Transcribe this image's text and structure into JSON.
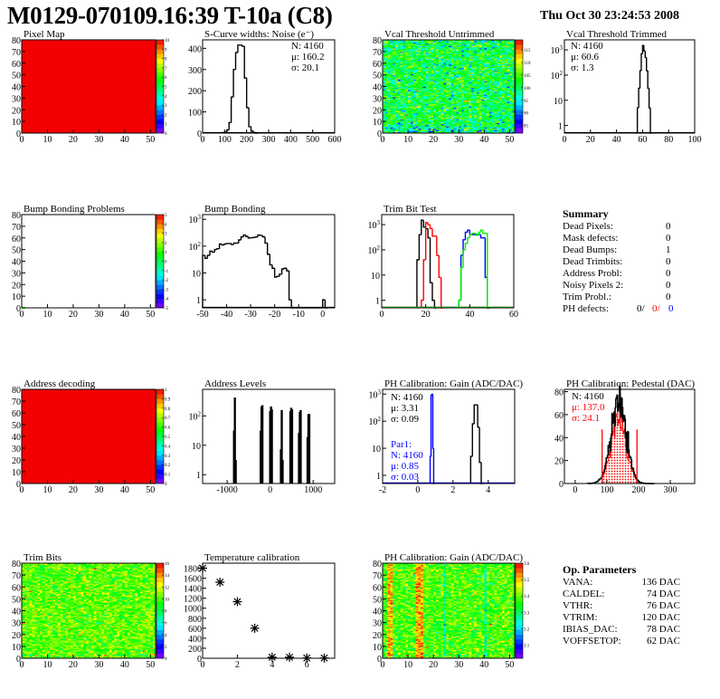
{
  "header": {
    "title": "M0129-070109.16:39 T-10a (C8)",
    "date": "Thu Oct 30 23:24:53 2008"
  },
  "summary": {
    "title": "Summary",
    "rows": [
      {
        "label": "Dead Pixels:",
        "value": "0"
      },
      {
        "label": "Mask defects:",
        "value": "0"
      },
      {
        "label": "Dead Bumps:",
        "value": "1"
      },
      {
        "label": "Dead Trimbits:",
        "value": "0"
      },
      {
        "label": "Address Probl:",
        "value": "0"
      },
      {
        "label": "Noisy Pixels 2:",
        "value": "0"
      },
      {
        "label": "Trim Probl.:",
        "value": "0"
      }
    ],
    "ph_defects": {
      "label": "PH defects:",
      "values": [
        "0/",
        "0/",
        "0"
      ],
      "colors": [
        "#000000",
        "#ff0000",
        "#0000ff"
      ]
    }
  },
  "op_parameters": {
    "title": "Op. Parameters",
    "rows": [
      {
        "label": "VANA:",
        "value": "136 DAC"
      },
      {
        "label": "CALDEL:",
        "value": "74 DAC"
      },
      {
        "label": "VTHR:",
        "value": "76 DAC"
      },
      {
        "label": "VTRIM:",
        "value": "120 DAC"
      },
      {
        "label": "IBIAS_DAC:",
        "value": "78 DAC"
      },
      {
        "label": "VOFFSETOP:",
        "value": "62 DAC"
      }
    ]
  },
  "chart_data": [
    {
      "id": "pixel_map",
      "type": "heatmap",
      "title": "Pixel Map",
      "xlim": [
        0,
        52
      ],
      "ylim": [
        0,
        80
      ],
      "xticks": [
        0,
        10,
        20,
        30,
        40,
        50
      ],
      "yticks": [
        0,
        10,
        20,
        30,
        40,
        50,
        60,
        70,
        80
      ],
      "zlim": [
        0,
        10
      ],
      "zticks": [
        0,
        1,
        2,
        3,
        4,
        5,
        6,
        7,
        8,
        9,
        10
      ],
      "uniform_value": 10
    },
    {
      "id": "scurve",
      "type": "histogram",
      "title": "S-Curve widths: Noise (e⁻)",
      "xlim": [
        0,
        600
      ],
      "ylim": [
        0,
        440
      ],
      "xticks": [
        0,
        100,
        200,
        300,
        400,
        500,
        600
      ],
      "yticks": [
        0,
        100,
        200,
        300,
        400
      ],
      "series": [
        {
          "color": "#000000",
          "bin_start": 90,
          "bin_width": 10,
          "values": [
            2,
            5,
            15,
            50,
            170,
            300,
            380,
            415,
            415,
            410,
            260,
            120,
            30,
            10,
            3,
            0
          ]
        }
      ],
      "stats": [
        {
          "text": "N: 4160",
          "color": "#000000"
        },
        {
          "text": "μ: 160.2",
          "color": "#000000"
        },
        {
          "text": "σ: 20.1",
          "color": "#000000"
        }
      ]
    },
    {
      "id": "vcal_untrimmed",
      "type": "heatmap",
      "title": "Vcal Threshold Untrimmed",
      "xlim": [
        0,
        52
      ],
      "ylim": [
        0,
        80
      ],
      "xticks": [
        0,
        10,
        20,
        30,
        40,
        50
      ],
      "yticks": [
        0,
        10,
        20,
        30,
        40,
        50,
        60,
        70,
        80
      ],
      "zlim": [
        82,
        119
      ],
      "zticks": [
        85,
        90,
        95,
        100,
        105,
        110,
        115
      ],
      "mean": 101,
      "spread": 4.5
    },
    {
      "id": "vcal_trimmed",
      "type": "histogram",
      "title": "Vcal Threshold Trimmed",
      "log_y": true,
      "xlim": [
        0,
        100
      ],
      "ylim": [
        0.5,
        2500
      ],
      "xticks": [
        0,
        20,
        40,
        60,
        80,
        100
      ],
      "yticks": [
        1,
        10,
        100,
        1000
      ],
      "series": [
        {
          "color": "#000000",
          "bin_start": 55,
          "bin_width": 1,
          "values": [
            0,
            5,
            30,
            150,
            700,
            1500,
            900,
            500,
            150,
            30,
            5,
            0
          ]
        }
      ],
      "stats": [
        {
          "text": "N: 4160",
          "color": "#000000"
        },
        {
          "text": "μ: 60.6",
          "color": "#000000"
        },
        {
          "text": "σ:  1.3",
          "color": "#000000"
        }
      ]
    },
    {
      "id": "bump_problems",
      "type": "heatmap",
      "title": "Bump Bonding Problems",
      "xlim": [
        0,
        52
      ],
      "ylim": [
        0,
        80
      ],
      "xticks": [
        0,
        10,
        20,
        30,
        40,
        50
      ],
      "yticks": [
        0,
        10,
        20,
        30,
        40,
        50,
        60,
        70,
        80
      ],
      "zlim": [
        -5,
        5
      ],
      "zticks": [
        -5,
        -4,
        -3,
        -2,
        -1,
        0,
        1,
        2,
        3,
        4,
        5
      ],
      "empty": true,
      "hot_pixels": [
        [
          0,
          0,
          1
        ]
      ]
    },
    {
      "id": "bump_bonding",
      "type": "histogram",
      "title": "Bump Bonding",
      "log_y": true,
      "xlim": [
        -50,
        5
      ],
      "ylim": [
        0.5,
        1500
      ],
      "xticks": [
        -50,
        -40,
        -30,
        -20,
        -10,
        0
      ],
      "yticks": [
        1,
        10,
        100,
        1000
      ],
      "series": [
        {
          "color": "#000000",
          "bin_start": -50,
          "bin_width": 1,
          "values": [
            45,
            35,
            45,
            65,
            60,
            75,
            80,
            120,
            110,
            120,
            125,
            125,
            115,
            130,
            130,
            170,
            220,
            260,
            230,
            200,
            205,
            210,
            220,
            260,
            250,
            220,
            130,
            50,
            20,
            15,
            7,
            7.5,
            9,
            14,
            15,
            12,
            1,
            0,
            0,
            0,
            0,
            0,
            0,
            0,
            0,
            0,
            0,
            0,
            0,
            0,
            1,
            0
          ]
        }
      ]
    },
    {
      "id": "trim_bit_test",
      "type": "histogram",
      "title": "Trim Bit Test",
      "log_y": true,
      "xlim": [
        0,
        60
      ],
      "ylim": [
        0.5,
        2500
      ],
      "xticks": [
        0,
        20,
        40,
        60
      ],
      "yticks": [
        1,
        10,
        100,
        1000
      ],
      "series": [
        {
          "color": "#000000",
          "bin_start": 16,
          "bin_width": 1,
          "values": [
            40,
            400,
            1500,
            800,
            700,
            300,
            5,
            1,
            0
          ]
        },
        {
          "color": "#ff0000",
          "bin_start": 18,
          "bin_width": 1,
          "values": [
            1,
            40,
            1200,
            1000,
            700,
            350,
            350,
            60,
            8,
            0
          ]
        },
        {
          "color": "#0000ff",
          "bin_start": 35,
          "bin_width": 1,
          "values": [
            1,
            60,
            250,
            500,
            600,
            400,
            400,
            400,
            400,
            400,
            300,
            300,
            8,
            0
          ]
        },
        {
          "color": "#00ee00",
          "bin_start": 35,
          "bin_width": 1,
          "values": [
            1,
            20,
            100,
            180,
            300,
            400,
            450,
            450,
            380,
            500,
            600,
            450,
            450,
            0
          ]
        }
      ]
    },
    {
      "id": "address_decoding",
      "type": "heatmap",
      "title": "Address decoding",
      "xlim": [
        0,
        52
      ],
      "ylim": [
        0,
        80
      ],
      "xticks": [
        0,
        10,
        20,
        30,
        40,
        50
      ],
      "yticks": [
        0,
        10,
        20,
        30,
        40,
        50,
        60,
        70,
        80
      ],
      "zlim": [
        0,
        1
      ],
      "zticks": [
        0,
        0.1,
        0.2,
        0.3,
        0.4,
        0.5,
        0.6,
        0.7,
        0.8,
        0.9,
        1
      ],
      "uniform_value": 1
    },
    {
      "id": "address_levels",
      "type": "histogram",
      "title": "Address Levels",
      "log_y": true,
      "xlim": [
        -1570,
        1500
      ],
      "ylim": [
        0.5,
        800
      ],
      "xticks": [
        -1000,
        0,
        1000
      ],
      "yticks": [
        1,
        10,
        100
      ],
      "series": [
        {
          "color": "#000000",
          "bin_width": 20,
          "bins": [
            [
              -850,
              30
            ],
            [
              -830,
              400
            ],
            [
              -810,
              3
            ],
            [
              -230,
              30
            ],
            [
              -210,
              200
            ],
            [
              -190,
              220
            ],
            [
              -10,
              140
            ],
            [
              10,
              200
            ],
            [
              30,
              160
            ],
            [
              240,
              7
            ],
            [
              260,
              150
            ],
            [
              280,
              3
            ],
            [
              460,
              140
            ],
            [
              480,
              180
            ],
            [
              500,
              160
            ],
            [
              660,
              25
            ],
            [
              680,
              130
            ],
            [
              700,
              150
            ],
            [
              860,
              18
            ],
            [
              880,
              110
            ],
            [
              900,
              110
            ]
          ]
        }
      ]
    },
    {
      "id": "ph_gain",
      "type": "histogram",
      "title": "PH Calibration: Gain (ADC/DAC)",
      "log_y": true,
      "xlim": [
        -2,
        5.5
      ],
      "ylim": [
        0.5,
        1500
      ],
      "xticks": [
        -2,
        0,
        2,
        4
      ],
      "yticks": [
        1,
        10,
        100,
        1000
      ],
      "series": [
        {
          "color": "#000000",
          "bin_start": 3.0,
          "bin_width": 0.1,
          "values": [
            5,
            80,
            400,
            400,
            60,
            3,
            0
          ]
        },
        {
          "color": "#0000ff",
          "bin_start": 0.7,
          "bin_width": 0.05,
          "values": [
            5,
            900,
            1000,
            10,
            0
          ]
        }
      ],
      "stats": [
        {
          "text": "N: 4160",
          "color": "#000000"
        },
        {
          "text": "μ: 3.31",
          "color": "#000000"
        },
        {
          "text": "σ: 0.09",
          "color": "#000000"
        }
      ],
      "stats2": [
        {
          "text": "Par1:",
          "color": "#0000ff"
        },
        {
          "text": "N: 4160",
          "color": "#0000ff"
        },
        {
          "text": "μ: 0.85",
          "color": "#0000ff"
        },
        {
          "text": "σ: 0.03",
          "color": "#0000ff"
        }
      ]
    },
    {
      "id": "ph_pedestal",
      "type": "histogram",
      "title": "PH Calibration: Pedestal (DAC)",
      "xlim": [
        -34,
        377
      ],
      "ylim": [
        0,
        82
      ],
      "xticks": [
        0,
        100,
        200,
        300
      ],
      "yticks": [
        0,
        20,
        40,
        60,
        80
      ],
      "entries": 4160,
      "mean": 137.0,
      "sigma": 24.1,
      "cut_lines": [
        85,
        195
      ],
      "cut_color": "#ff0000",
      "stats": [
        {
          "text": "N: 4160",
          "color": "#000000"
        },
        {
          "text": "μ: 137.0",
          "color": "#ff0000"
        },
        {
          "text": "σ: 24.1",
          "color": "#ff0000"
        }
      ]
    },
    {
      "id": "trim_bits",
      "type": "heatmap",
      "title": "Trim Bits",
      "xlim": [
        0,
        52
      ],
      "ylim": [
        0,
        80
      ],
      "xticks": [
        0,
        10,
        20,
        30,
        40,
        50
      ],
      "yticks": [
        0,
        10,
        20,
        30,
        40,
        50,
        60,
        70,
        80
      ],
      "zlim": [
        0,
        16
      ],
      "zticks": [
        0,
        2,
        4,
        6,
        8,
        10,
        12,
        14,
        16
      ],
      "mean": 10.2,
      "spread": 1.3
    },
    {
      "id": "temperature",
      "type": "scatter",
      "title": "Temperature calibration",
      "xlim": [
        0,
        7.6
      ],
      "ylim": [
        0,
        1900
      ],
      "xticks": [
        0,
        2,
        4,
        6
      ],
      "yticks": [
        0,
        200,
        400,
        600,
        800,
        1000,
        1200,
        1400,
        1600,
        1800
      ],
      "x": [
        0,
        1,
        2,
        3,
        4,
        5,
        6,
        7
      ],
      "y": [
        1800,
        1520,
        1130,
        600,
        20,
        20,
        5,
        5
      ]
    },
    {
      "id": "ph_gain_map",
      "type": "heatmap",
      "title": "PH Calibration: Gain (ADC/DAC)",
      "xlim": [
        0,
        52
      ],
      "ylim": [
        0,
        80
      ],
      "xticks": [
        0,
        10,
        20,
        30,
        40,
        50
      ],
      "yticks": [
        0,
        10,
        20,
        30,
        40,
        50,
        60,
        70,
        80
      ],
      "zlim": [
        3.02,
        3.6
      ],
      "zticks": [
        3.1,
        3.2,
        3.3,
        3.4,
        3.5,
        3.6
      ],
      "mean": 3.38,
      "spread": 0.05,
      "hot_columns": [
        2,
        3,
        13,
        14,
        15
      ],
      "cold_columns": [
        24,
        40
      ]
    }
  ]
}
